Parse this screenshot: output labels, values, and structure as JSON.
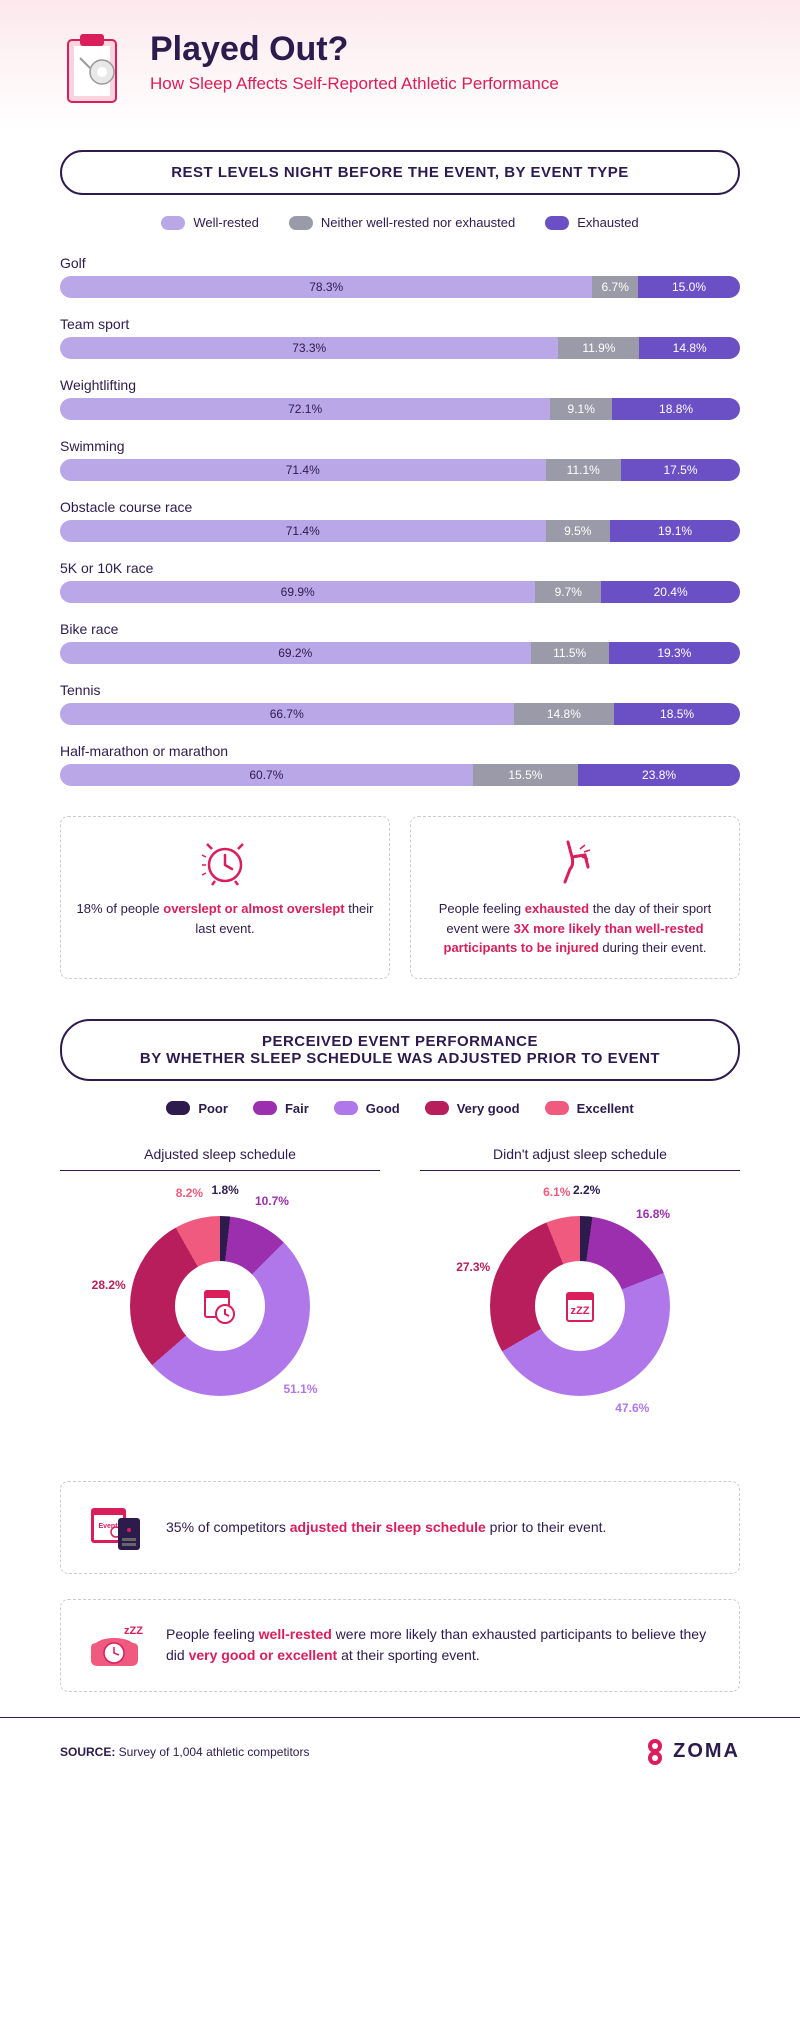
{
  "header": {
    "title": "Played Out?",
    "subtitle": "How Sleep Affects Self-Reported Athletic Performance"
  },
  "colors": {
    "well_rested": "#b9a7e8",
    "neither": "#9a9aa8",
    "exhausted": "#6b4fc4",
    "poor": "#2d1b4e",
    "fair": "#9b2fae",
    "good": "#b077ea",
    "very_good": "#b81e5b",
    "excellent": "#f05a7e",
    "text": "#2d1b4e",
    "accent": "#d91e5b",
    "bg": "#ffffff"
  },
  "chart1": {
    "title": "REST LEVELS NIGHT BEFORE THE EVENT, BY EVENT TYPE",
    "legend": [
      "Well-rested",
      "Neither well-rested nor exhausted",
      "Exhausted"
    ],
    "rows": [
      {
        "label": "Golf",
        "v": [
          78.3,
          6.7,
          15.0
        ]
      },
      {
        "label": "Team sport",
        "v": [
          73.3,
          11.9,
          14.8
        ]
      },
      {
        "label": "Weightlifting",
        "v": [
          72.1,
          9.1,
          18.8
        ]
      },
      {
        "label": "Swimming",
        "v": [
          71.4,
          11.1,
          17.5
        ]
      },
      {
        "label": "Obstacle course race",
        "v": [
          71.4,
          9.5,
          19.1
        ]
      },
      {
        "label": "5K or 10K race",
        "v": [
          69.9,
          9.7,
          20.4
        ]
      },
      {
        "label": "Bike race",
        "v": [
          69.2,
          11.5,
          19.3
        ]
      },
      {
        "label": "Tennis",
        "v": [
          66.7,
          14.8,
          18.5
        ]
      },
      {
        "label": "Half-marathon or marathon",
        "v": [
          60.7,
          15.5,
          23.8
        ]
      }
    ]
  },
  "callout1": {
    "pct": "18%",
    "text_a": " of people ",
    "hl": "overslept or almost overslept",
    "text_b": " their last event."
  },
  "callout2": {
    "text_a": "People feeling ",
    "hl1": "exhausted",
    "text_b": " the day of their sport event were ",
    "hl2": "3X more likely than well-rested participants to be injured",
    "text_c": " during their event."
  },
  "chart2": {
    "title": "PERCEIVED EVENT PERFORMANCE\nBY WHETHER SLEEP SCHEDULE WAS ADJUSTED PRIOR TO EVENT",
    "legend": [
      "Poor",
      "Fair",
      "Good",
      "Very good",
      "Excellent"
    ],
    "donuts": [
      {
        "title": "Adjusted sleep schedule",
        "slices": [
          1.8,
          10.7,
          51.1,
          28.2,
          8.2
        ],
        "labels": [
          "1.8%",
          "10.7%",
          "51.1%",
          "28.2%",
          "8.2%"
        ]
      },
      {
        "title": "Didn't adjust sleep schedule",
        "slices": [
          2.2,
          16.8,
          47.6,
          27.3,
          6.1
        ],
        "labels": [
          "2.2%",
          "16.8%",
          "47.6%",
          "27.3%",
          "6.1%"
        ]
      }
    ]
  },
  "callout3": {
    "pct": "35%",
    "text_a": " of competitors ",
    "hl": "adjusted their sleep schedule",
    "text_b": " prior to their event."
  },
  "callout4": {
    "text_a": "People feeling ",
    "hl1": "well-rested",
    "text_b": " were more likely than exhausted participants to believe they did ",
    "hl2": "very good or excellent",
    "text_c": " at their sporting event."
  },
  "footer": {
    "source_label": "SOURCE:",
    "source_text": " Survey of 1,004 athletic competitors",
    "brand": "ZOMA"
  }
}
